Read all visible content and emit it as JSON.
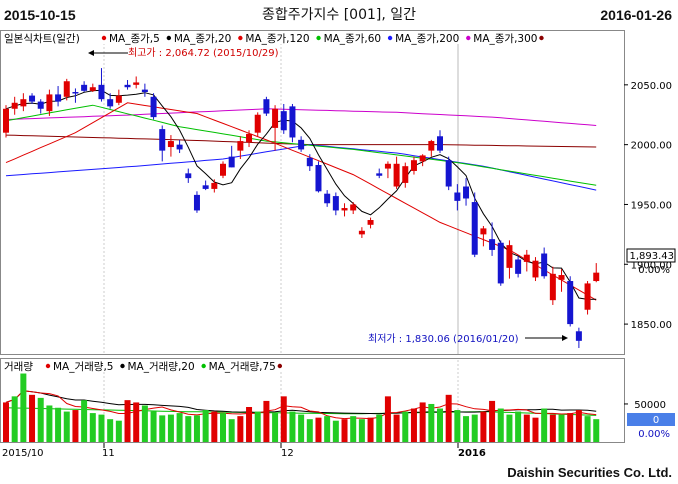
{
  "header": {
    "start_date": "2015-10-15",
    "title": "종합주가지수 [001], 일간",
    "end_date": "2016-01-26"
  },
  "legend": {
    "chart_label": "일본식차트(일간)",
    "ma": [
      {
        "name": "MA_종가,5",
        "color": "#e00000"
      },
      {
        "name": "MA_종가,20",
        "color": "#000000"
      },
      {
        "name": "MA_종가,120",
        "color": "#e00000"
      },
      {
        "name": "MA_종가,60",
        "color": "#00c000"
      },
      {
        "name": "MA_종가,200",
        "color": "#1a1aff"
      },
      {
        "name": "MA_종가,300",
        "color": "#cc00cc"
      }
    ]
  },
  "volume_legend": {
    "label": "거래량",
    "ma": [
      {
        "name": "MA_거래량,5",
        "color": "#e00000"
      },
      {
        "name": "MA_거래량,20",
        "color": "#000000"
      },
      {
        "name": "MA_거래량,75",
        "color": "#00c000"
      }
    ]
  },
  "annotations": {
    "high": "최고가 : 2,064.72 (2015/10/29)",
    "low": "최저가 : 1,830.06 (2016/01/20)"
  },
  "price_box": {
    "value": "1,893.43",
    "change": "0.00%"
  },
  "volume_box": {
    "value": "0",
    "change": "0.00%"
  },
  "x_labels": [
    "2015/10",
    "11",
    "12",
    "2016"
  ],
  "footer": "Daishin Securities Co. Ltd.",
  "chart_data": {
    "type": "candlestick",
    "price_axis": {
      "ticks": [
        2050,
        2000,
        1950,
        1900,
        1850
      ],
      "tick_labels": [
        "2050.00",
        "2000.00",
        "1950.00",
        "1900.00",
        "1850.00"
      ],
      "range": [
        1825,
        2095
      ]
    },
    "volume_axis": {
      "ticks": [
        50000
      ],
      "tick_labels": [
        "50000"
      ],
      "range": [
        0,
        92000
      ]
    },
    "candles": [
      {
        "o": 2010,
        "h": 2033,
        "l": 2006,
        "c": 2030
      },
      {
        "o": 2030,
        "h": 2040,
        "l": 2025,
        "c": 2035
      },
      {
        "o": 2032,
        "h": 2043,
        "l": 2028,
        "c": 2038
      },
      {
        "o": 2041,
        "h": 2043,
        "l": 2034,
        "c": 2036
      },
      {
        "o": 2036,
        "h": 2038,
        "l": 2026,
        "c": 2030
      },
      {
        "o": 2028,
        "h": 2046,
        "l": 2024,
        "c": 2042
      },
      {
        "o": 2042,
        "h": 2049,
        "l": 2032,
        "c": 2036
      },
      {
        "o": 2040,
        "h": 2055,
        "l": 2037,
        "c": 2053
      },
      {
        "o": 2044,
        "h": 2047,
        "l": 2035,
        "c": 2043
      },
      {
        "o": 2050,
        "h": 2053,
        "l": 2044,
        "c": 2045
      },
      {
        "o": 2045,
        "h": 2051,
        "l": 2044,
        "c": 2048
      },
      {
        "o": 2050,
        "h": 2064,
        "l": 2036,
        "c": 2038
      },
      {
        "o": 2038,
        "h": 2043,
        "l": 2030,
        "c": 2032
      },
      {
        "o": 2035,
        "h": 2046,
        "l": 2033,
        "c": 2041
      },
      {
        "o": 2050,
        "h": 2054,
        "l": 2046,
        "c": 2048
      },
      {
        "o": 2050,
        "h": 2057,
        "l": 2047,
        "c": 2052
      },
      {
        "o": 2046,
        "h": 2051,
        "l": 2040,
        "c": 2044
      },
      {
        "o": 2040,
        "h": 2043,
        "l": 2021,
        "c": 2023
      },
      {
        "o": 2013,
        "h": 2016,
        "l": 1986,
        "c": 1995
      },
      {
        "o": 1998,
        "h": 2008,
        "l": 1990,
        "c": 2003
      },
      {
        "o": 2000,
        "h": 2004,
        "l": 1993,
        "c": 1996
      },
      {
        "o": 1976,
        "h": 1980,
        "l": 1968,
        "c": 1972
      },
      {
        "o": 1958,
        "h": 1961,
        "l": 1943,
        "c": 1945
      },
      {
        "o": 1966,
        "h": 1970,
        "l": 1962,
        "c": 1963
      },
      {
        "o": 1963,
        "h": 1971,
        "l": 1960,
        "c": 1968
      },
      {
        "o": 1974,
        "h": 1986,
        "l": 1972,
        "c": 1984
      },
      {
        "o": 1990,
        "h": 1999,
        "l": 1981,
        "c": 1981
      },
      {
        "o": 1995,
        "h": 2007,
        "l": 1988,
        "c": 2003
      },
      {
        "o": 2002,
        "h": 2012,
        "l": 1998,
        "c": 2009
      },
      {
        "o": 2010,
        "h": 2027,
        "l": 2007,
        "c": 2025
      },
      {
        "o": 2038,
        "h": 2040,
        "l": 2024,
        "c": 2026
      },
      {
        "o": 2014,
        "h": 2033,
        "l": 1995,
        "c": 2030
      },
      {
        "o": 2028,
        "h": 2034,
        "l": 2009,
        "c": 2012
      },
      {
        "o": 2032,
        "h": 2034,
        "l": 2002,
        "c": 2006
      },
      {
        "o": 2004,
        "h": 2007,
        "l": 1994,
        "c": 1996
      },
      {
        "o": 1989,
        "h": 1992,
        "l": 1978,
        "c": 1982
      },
      {
        "o": 1983,
        "h": 1986,
        "l": 1960,
        "c": 1961
      },
      {
        "o": 1959,
        "h": 1962,
        "l": 1948,
        "c": 1951
      },
      {
        "o": 1957,
        "h": 1960,
        "l": 1941,
        "c": 1945
      },
      {
        "o": 1945,
        "h": 1951,
        "l": 1940,
        "c": 1947
      },
      {
        "o": 1945,
        "h": 1952,
        "l": 1942,
        "c": 1950
      },
      {
        "o": 1925,
        "h": 1931,
        "l": 1922,
        "c": 1928
      },
      {
        "o": 1933,
        "h": 1939,
        "l": 1930,
        "c": 1937
      },
      {
        "o": 1976,
        "h": 1980,
        "l": 1972,
        "c": 1974
      },
      {
        "o": 1980,
        "h": 1986,
        "l": 1972,
        "c": 1984
      },
      {
        "o": 1965,
        "h": 1990,
        "l": 1963,
        "c": 1984
      },
      {
        "o": 1968,
        "h": 1985,
        "l": 1964,
        "c": 1982
      },
      {
        "o": 1978,
        "h": 1990,
        "l": 1975,
        "c": 1987
      },
      {
        "o": 1986,
        "h": 1992,
        "l": 1982,
        "c": 1991
      },
      {
        "o": 1995,
        "h": 2004,
        "l": 1990,
        "c": 2003
      },
      {
        "o": 2007,
        "h": 2012,
        "l": 1993,
        "c": 1995
      },
      {
        "o": 1987,
        "h": 1990,
        "l": 1962,
        "c": 1965
      },
      {
        "o": 1960,
        "h": 1967,
        "l": 1945,
        "c": 1953
      },
      {
        "o": 1965,
        "h": 1972,
        "l": 1949,
        "c": 1955
      },
      {
        "o": 1952,
        "h": 1960,
        "l": 1906,
        "c": 1908
      },
      {
        "o": 1925,
        "h": 1932,
        "l": 1915,
        "c": 1930
      },
      {
        "o": 1921,
        "h": 1935,
        "l": 1907,
        "c": 1912
      },
      {
        "o": 1918,
        "h": 1920,
        "l": 1882,
        "c": 1884
      },
      {
        "o": 1897,
        "h": 1920,
        "l": 1888,
        "c": 1916
      },
      {
        "o": 1904,
        "h": 1907,
        "l": 1889,
        "c": 1892
      },
      {
        "o": 1902,
        "h": 1912,
        "l": 1894,
        "c": 1908
      },
      {
        "o": 1889,
        "h": 1906,
        "l": 1886,
        "c": 1903
      },
      {
        "o": 1909,
        "h": 1914,
        "l": 1888,
        "c": 1890
      },
      {
        "o": 1870,
        "h": 1898,
        "l": 1866,
        "c": 1892
      },
      {
        "o": 1887,
        "h": 1896,
        "l": 1877,
        "c": 1891
      },
      {
        "o": 1886,
        "h": 1890,
        "l": 1848,
        "c": 1850
      },
      {
        "o": 1844,
        "h": 1847,
        "l": 1830,
        "c": 1836
      },
      {
        "o": 1862,
        "h": 1886,
        "l": 1858,
        "c": 1884
      },
      {
        "o": 1886,
        "h": 1901,
        "l": 1885,
        "c": 1893
      }
    ],
    "volume": [
      52000,
      60000,
      90000,
      62000,
      58000,
      48000,
      45000,
      40000,
      42000,
      55000,
      38000,
      36000,
      30000,
      28000,
      55000,
      52000,
      48000,
      40000,
      35000,
      36000,
      38000,
      34000,
      35000,
      42000,
      40000,
      38000,
      30000,
      34000,
      46000,
      40000,
      54000,
      38000,
      60000,
      40000,
      36000,
      30000,
      32000,
      34000,
      28000,
      30000,
      34000,
      30000,
      32000,
      36000,
      60000,
      36000,
      40000,
      44000,
      52000,
      50000,
      44000,
      62000,
      42000,
      34000,
      36000,
      40000,
      54000,
      44000,
      36000,
      40000,
      36000,
      32000,
      44000,
      36000,
      36000,
      38000,
      42000,
      34000,
      30000
    ],
    "volume_up_idx": [
      3,
      8,
      14,
      15,
      28,
      30,
      32,
      36,
      44,
      47,
      48,
      51,
      55,
      56,
      61,
      63,
      65,
      66
    ]
  }
}
